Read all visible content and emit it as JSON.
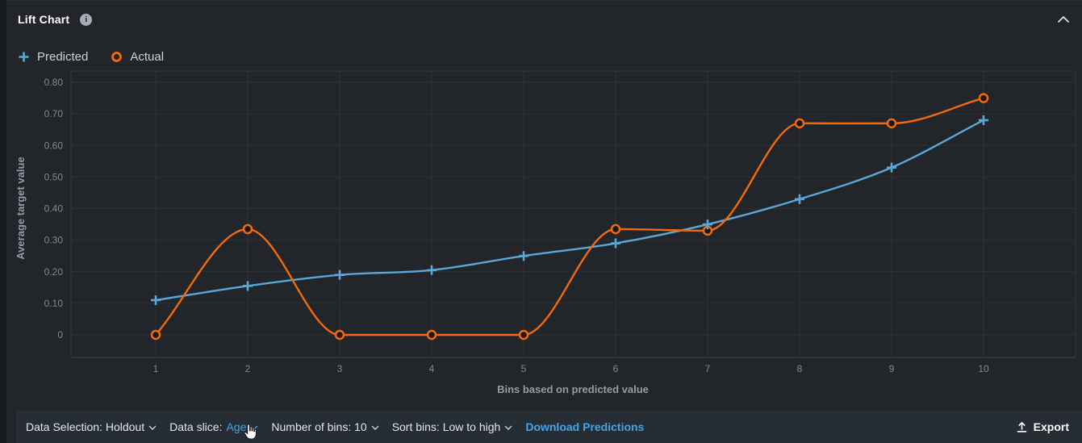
{
  "header": {
    "title": "Lift Chart"
  },
  "legend": {
    "items": [
      {
        "label": "Predicted",
        "marker": "plus",
        "color": "#5aa7d9"
      },
      {
        "label": "Actual",
        "marker": "ring",
        "color": "#f2690e"
      }
    ]
  },
  "chart_data": {
    "type": "line",
    "title": "Lift Chart",
    "xlabel": "Bins based on predicted value",
    "ylabel": "Average target value",
    "categories": [
      "1",
      "2",
      "3",
      "4",
      "5",
      "6",
      "7",
      "8",
      "9",
      "10"
    ],
    "series": [
      {
        "name": "Predicted",
        "marker": "plus",
        "color": "#5aa7d9",
        "values": [
          0.11,
          0.155,
          0.19,
          0.205,
          0.25,
          0.29,
          0.35,
          0.43,
          0.53,
          0.68
        ]
      },
      {
        "name": "Actual",
        "marker": "circle",
        "color": "#f2690e",
        "values": [
          0,
          0.335,
          0,
          0,
          0,
          0.335,
          0.33,
          0.67,
          0.67,
          0.75
        ]
      }
    ],
    "ylim": [
      0,
      0.8
    ],
    "yticks": [
      0,
      0.1,
      0.2,
      0.3,
      0.4,
      0.5,
      0.6,
      0.7,
      0.8
    ],
    "ytick_labels": [
      "0",
      "0.10",
      "0.20",
      "0.30",
      "0.40",
      "0.50",
      "0.60",
      "0.70",
      "0.80"
    ],
    "grid": true,
    "legend_position": "top-left",
    "interpolation": "monotone"
  },
  "toolbar": {
    "data_selection": {
      "label": "Data Selection:",
      "value": "Holdout"
    },
    "data_slice": {
      "label": "Data slice:",
      "value": "Age"
    },
    "number_of_bins": {
      "label": "Number of bins:",
      "value": "10"
    },
    "sort_bins": {
      "label": "Sort bins:",
      "value": "Low to high"
    },
    "download_label": "Download Predictions",
    "export_label": "Export"
  },
  "colors": {
    "predicted": "#5aa7d9",
    "actual": "#f2690e",
    "link_blue": "#42a5e8"
  }
}
